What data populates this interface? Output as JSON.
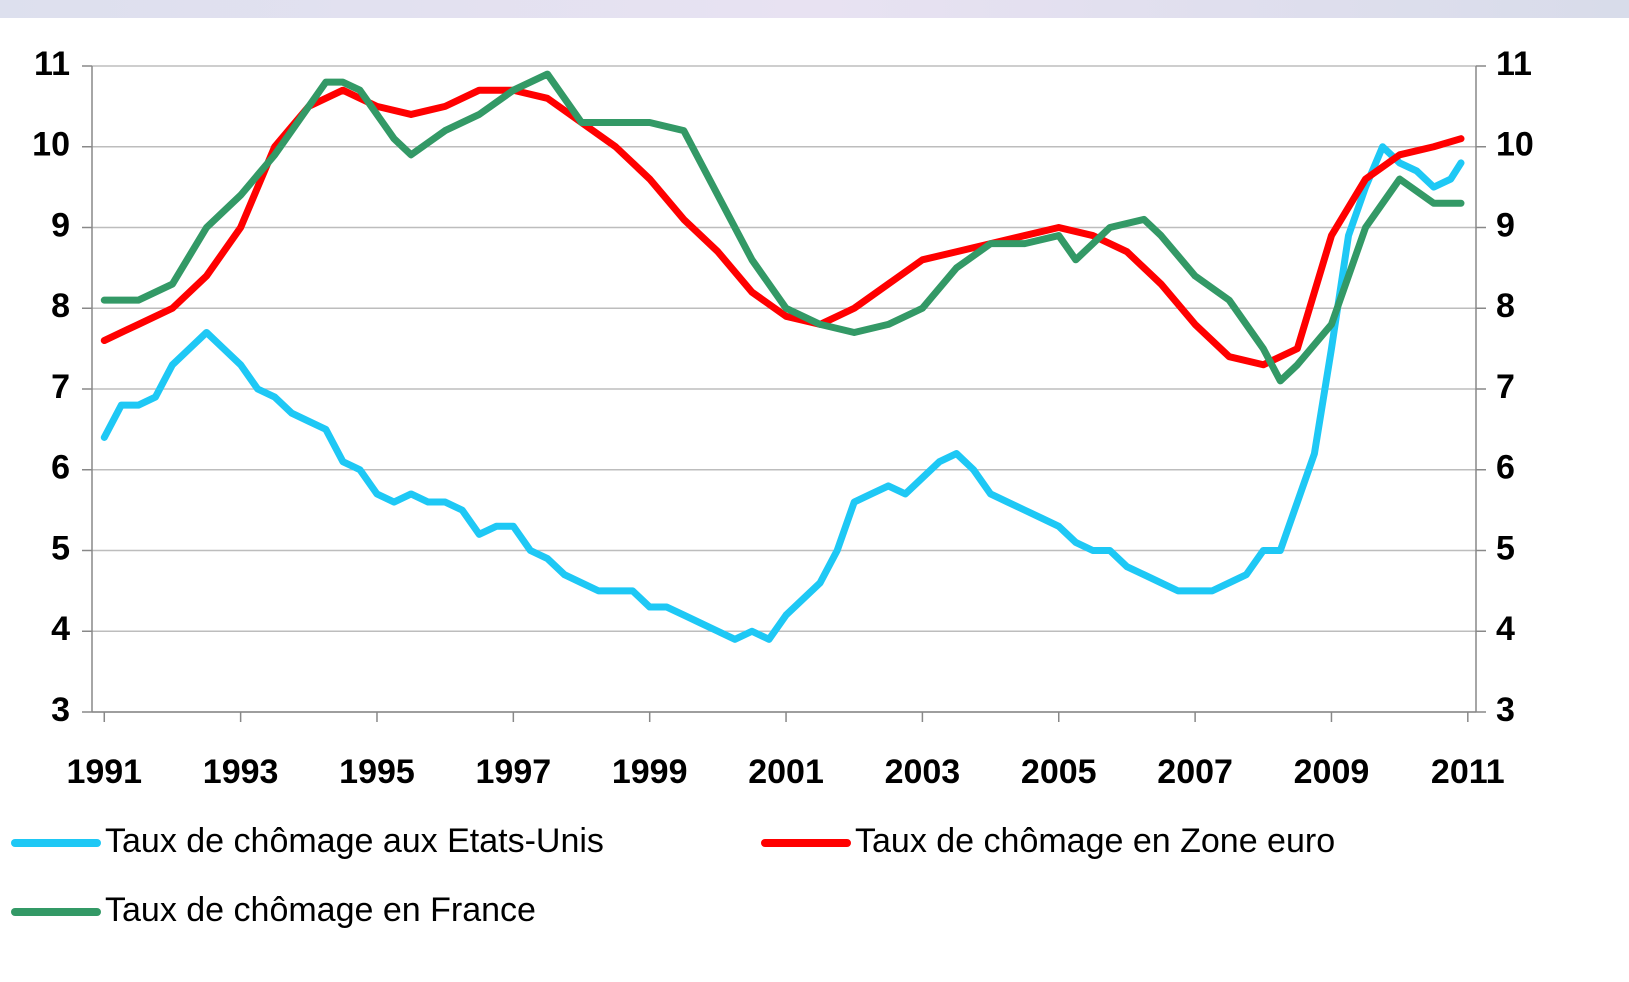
{
  "chart_data": {
    "type": "line",
    "xlim": [
      1990.82,
      2011.12
    ],
    "xticks": [
      1991,
      1993,
      1995,
      1997,
      1999,
      2001,
      2003,
      2005,
      2007,
      2009,
      2011
    ],
    "ylim": [
      3,
      11
    ],
    "yticks": [
      3,
      4,
      5,
      6,
      7,
      8,
      9,
      10,
      11
    ],
    "y2lim": [
      3,
      11
    ],
    "y2ticks": [
      3,
      4,
      5,
      6,
      7,
      8,
      9,
      10,
      11
    ],
    "grid": true,
    "legend": "bottom",
    "series": [
      {
        "name": "Taux de chômage aux Etats-Unis",
        "color": "#1ec8f5",
        "x": [
          1991.0,
          1991.25,
          1991.5,
          1991.75,
          1992.0,
          1992.25,
          1992.5,
          1992.75,
          1993.0,
          1993.25,
          1993.5,
          1993.75,
          1994.0,
          1994.25,
          1994.5,
          1994.75,
          1995.0,
          1995.25,
          1995.5,
          1995.75,
          1996.0,
          1996.25,
          1996.5,
          1996.75,
          1997.0,
          1997.25,
          1997.5,
          1997.75,
          1998.0,
          1998.25,
          1998.5,
          1998.75,
          1999.0,
          1999.25,
          1999.5,
          1999.75,
          2000.0,
          2000.25,
          2000.5,
          2000.75,
          2001.0,
          2001.25,
          2001.5,
          2001.75,
          2002.0,
          2002.25,
          2002.5,
          2002.75,
          2003.0,
          2003.25,
          2003.5,
          2003.75,
          2004.0,
          2004.25,
          2004.5,
          2004.75,
          2005.0,
          2005.25,
          2005.5,
          2005.75,
          2006.0,
          2006.25,
          2006.5,
          2006.75,
          2007.0,
          2007.25,
          2007.5,
          2007.75,
          2008.0,
          2008.25,
          2008.5,
          2008.75,
          2009.0,
          2009.25,
          2009.5,
          2009.75,
          2010.0,
          2010.25,
          2010.5,
          2010.75,
          2010.9
        ],
        "values": [
          6.4,
          6.8,
          6.8,
          6.9,
          7.3,
          7.5,
          7.7,
          7.5,
          7.3,
          7.0,
          6.9,
          6.7,
          6.6,
          6.5,
          6.1,
          6.0,
          5.7,
          5.6,
          5.7,
          5.6,
          5.6,
          5.5,
          5.2,
          5.3,
          5.3,
          5.0,
          4.9,
          4.7,
          4.6,
          4.5,
          4.5,
          4.5,
          4.3,
          4.3,
          4.2,
          4.1,
          4.0,
          3.9,
          4.0,
          3.9,
          4.2,
          4.4,
          4.6,
          5.0,
          5.6,
          5.7,
          5.8,
          5.7,
          5.9,
          6.1,
          6.2,
          6.0,
          5.7,
          5.6,
          5.5,
          5.4,
          5.3,
          5.1,
          5.0,
          5.0,
          4.8,
          4.7,
          4.6,
          4.5,
          4.5,
          4.5,
          4.6,
          4.7,
          5.0,
          5.0,
          5.6,
          6.2,
          7.5,
          8.9,
          9.5,
          10.0,
          9.8,
          9.7,
          9.5,
          9.6,
          9.8
        ]
      },
      {
        "name": "Taux de chômage en Zone euro",
        "color": "#ff0000",
        "x": [
          1991.0,
          1991.5,
          1992.0,
          1992.5,
          1993.0,
          1993.5,
          1994.0,
          1994.5,
          1995.0,
          1995.5,
          1996.0,
          1996.5,
          1997.0,
          1997.5,
          1998.0,
          1998.5,
          1999.0,
          1999.5,
          2000.0,
          2000.5,
          2001.0,
          2001.5,
          2002.0,
          2002.5,
          2003.0,
          2003.5,
          2004.0,
          2004.5,
          2005.0,
          2005.5,
          2006.0,
          2006.5,
          2007.0,
          2007.5,
          2008.0,
          2008.5,
          2009.0,
          2009.5,
          2010.0,
          2010.5,
          2010.9
        ],
        "values": [
          7.6,
          7.8,
          8.0,
          8.4,
          9.0,
          10.0,
          10.5,
          10.7,
          10.5,
          10.4,
          10.5,
          10.7,
          10.7,
          10.6,
          10.3,
          10.0,
          9.6,
          9.1,
          8.7,
          8.2,
          7.9,
          7.8,
          8.0,
          8.3,
          8.6,
          8.7,
          8.8,
          8.9,
          9.0,
          8.9,
          8.7,
          8.3,
          7.8,
          7.4,
          7.3,
          7.5,
          8.9,
          9.6,
          9.9,
          10.0,
          10.1
        ]
      },
      {
        "name": "Taux de chômage en France",
        "color": "#339966",
        "x": [
          1991.0,
          1991.5,
          1992.0,
          1992.5,
          1993.0,
          1993.5,
          1994.0,
          1994.25,
          1994.5,
          1994.75,
          1995.0,
          1995.25,
          1995.5,
          1996.0,
          1996.5,
          1997.0,
          1997.5,
          1998.0,
          1998.5,
          1999.0,
          1999.5,
          2000.0,
          2000.5,
          2001.0,
          2001.5,
          2002.0,
          2002.5,
          2003.0,
          2003.5,
          2004.0,
          2004.5,
          2005.0,
          2005.25,
          2005.75,
          2006.25,
          2006.5,
          2007.0,
          2007.5,
          2008.0,
          2008.25,
          2008.5,
          2009.0,
          2009.5,
          2010.0,
          2010.5,
          2010.9
        ],
        "values": [
          8.1,
          8.1,
          8.3,
          9.0,
          9.4,
          9.9,
          10.5,
          10.8,
          10.8,
          10.7,
          10.4,
          10.1,
          9.9,
          10.2,
          10.4,
          10.7,
          10.9,
          10.3,
          10.3,
          10.3,
          10.2,
          9.4,
          8.6,
          8.0,
          7.8,
          7.7,
          7.8,
          8.0,
          8.5,
          8.8,
          8.8,
          8.9,
          8.6,
          9.0,
          9.1,
          8.9,
          8.4,
          8.1,
          7.5,
          7.1,
          7.3,
          7.8,
          9.0,
          9.6,
          9.3,
          9.3
        ]
      }
    ]
  }
}
